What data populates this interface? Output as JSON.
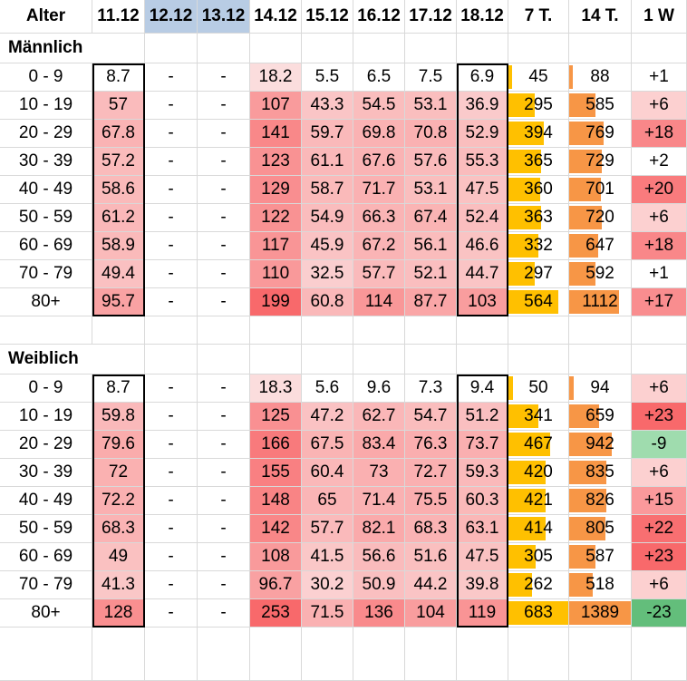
{
  "columns": [
    "Alter",
    "11.12",
    "12.12",
    "13.12",
    "14.12",
    "15.12",
    "16.12",
    "17.12",
    "18.12",
    "7 T.",
    "14 T.",
    "1 W"
  ],
  "highlighted_columns": [
    "12.12",
    "13.12"
  ],
  "colors": {
    "header_highlight": "#b8cce4",
    "heat_low": "#fbe3e3",
    "heat_high": "#f8696b",
    "bar_7t": "#ffc000",
    "bar_14t": "#f79646",
    "delta_positive_high": "#f8696b",
    "delta_negative_low": "#c6efce",
    "delta_negative_high": "#63be7b"
  },
  "sections": [
    {
      "title": "Männlich",
      "rows": [
        {
          "age": "0 - 9",
          "values": [
            "8.7",
            "-",
            "-",
            "18.2",
            "5.5",
            "6.5",
            "7.5",
            "6.9"
          ],
          "t7": "45",
          "t14": "88",
          "w1": "+1"
        },
        {
          "age": "10 - 19",
          "values": [
            "57",
            "-",
            "-",
            "107",
            "43.3",
            "54.5",
            "53.1",
            "36.9"
          ],
          "t7": "295",
          "t14": "585",
          "w1": "+6"
        },
        {
          "age": "20 - 29",
          "values": [
            "67.8",
            "-",
            "-",
            "141",
            "59.7",
            "69.8",
            "70.8",
            "52.9"
          ],
          "t7": "394",
          "t14": "769",
          "w1": "+18"
        },
        {
          "age": "30 - 39",
          "values": [
            "57.2",
            "-",
            "-",
            "123",
            "61.1",
            "67.6",
            "57.6",
            "55.3"
          ],
          "t7": "365",
          "t14": "729",
          "w1": "+2"
        },
        {
          "age": "40 - 49",
          "values": [
            "58.6",
            "-",
            "-",
            "129",
            "58.7",
            "71.7",
            "53.1",
            "47.5"
          ],
          "t7": "360",
          "t14": "701",
          "w1": "+20"
        },
        {
          "age": "50 - 59",
          "values": [
            "61.2",
            "-",
            "-",
            "122",
            "54.9",
            "66.3",
            "67.4",
            "52.4"
          ],
          "t7": "363",
          "t14": "720",
          "w1": "+6"
        },
        {
          "age": "60 - 69",
          "values": [
            "58.9",
            "-",
            "-",
            "117",
            "45.9",
            "67.2",
            "56.1",
            "46.6"
          ],
          "t7": "332",
          "t14": "647",
          "w1": "+18"
        },
        {
          "age": "70 - 79",
          "values": [
            "49.4",
            "-",
            "-",
            "110",
            "32.5",
            "57.7",
            "52.1",
            "44.7"
          ],
          "t7": "297",
          "t14": "592",
          "w1": "+1"
        },
        {
          "age": "80+",
          "values": [
            "95.7",
            "-",
            "-",
            "199",
            "60.8",
            "114",
            "87.7",
            "103"
          ],
          "t7": "564",
          "t14": "1112",
          "w1": "+17"
        }
      ]
    },
    {
      "title": "Weiblich",
      "rows": [
        {
          "age": "0 - 9",
          "values": [
            "8.7",
            "-",
            "-",
            "18.3",
            "5.6",
            "9.6",
            "7.3",
            "9.4"
          ],
          "t7": "50",
          "t14": "94",
          "w1": "+6"
        },
        {
          "age": "10 - 19",
          "values": [
            "59.8",
            "-",
            "-",
            "125",
            "47.2",
            "62.7",
            "54.7",
            "51.2"
          ],
          "t7": "341",
          "t14": "659",
          "w1": "+23"
        },
        {
          "age": "20 - 29",
          "values": [
            "79.6",
            "-",
            "-",
            "166",
            "67.5",
            "83.4",
            "76.3",
            "73.7"
          ],
          "t7": "467",
          "t14": "942",
          "w1": "-9"
        },
        {
          "age": "30 - 39",
          "values": [
            "72",
            "-",
            "-",
            "155",
            "60.4",
            "73",
            "72.7",
            "59.3"
          ],
          "t7": "420",
          "t14": "835",
          "w1": "+6"
        },
        {
          "age": "40 - 49",
          "values": [
            "72.2",
            "-",
            "-",
            "148",
            "65",
            "71.4",
            "75.5",
            "60.3"
          ],
          "t7": "421",
          "t14": "826",
          "w1": "+15"
        },
        {
          "age": "50 - 59",
          "values": [
            "68.3",
            "-",
            "-",
            "142",
            "57.7",
            "82.1",
            "68.3",
            "63.1"
          ],
          "t7": "414",
          "t14": "805",
          "w1": "+22"
        },
        {
          "age": "60 - 69",
          "values": [
            "49",
            "-",
            "-",
            "108",
            "41.5",
            "56.6",
            "51.6",
            "47.5"
          ],
          "t7": "305",
          "t14": "587",
          "w1": "+23"
        },
        {
          "age": "70 - 79",
          "values": [
            "41.3",
            "-",
            "-",
            "96.7",
            "30.2",
            "50.9",
            "44.2",
            "39.8"
          ],
          "t7": "262",
          "t14": "518",
          "w1": "+6"
        },
        {
          "age": "80+",
          "values": [
            "128",
            "-",
            "-",
            "253",
            "71.5",
            "136",
            "104",
            "119"
          ],
          "t7": "683",
          "t14": "1389",
          "w1": "-23"
        }
      ]
    }
  ]
}
